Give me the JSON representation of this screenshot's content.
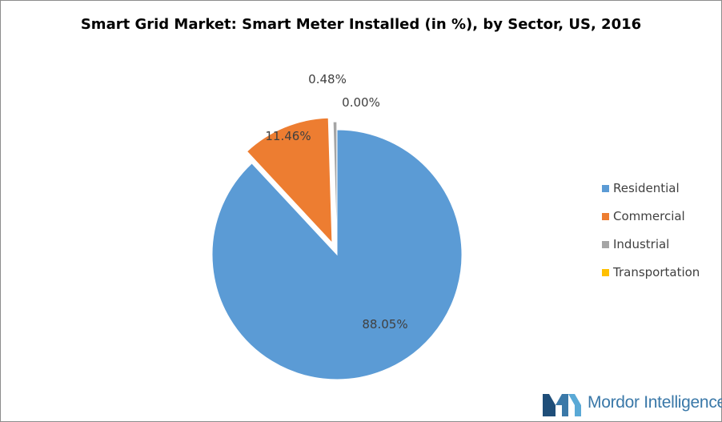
{
  "chart_data": {
    "type": "pie",
    "title": "Smart Grid Market: Smart Meter Installed (in %), by Sector, US, 2016",
    "slices": [
      {
        "name": "Residential",
        "value": 88.05,
        "label": "88.05%",
        "color": "#5b9bd5",
        "exploded": false
      },
      {
        "name": "Commercial",
        "value": 11.46,
        "label": "11.46%",
        "color": "#ed7d31",
        "exploded": true
      },
      {
        "name": "Industrial",
        "value": 0.48,
        "label": "0.48%",
        "color": "#a5a5a5",
        "exploded": true
      },
      {
        "name": "Transportation",
        "value": 0.0,
        "label": "0.00%",
        "color": "#ffc000",
        "exploded": true
      }
    ],
    "legend_position": "right"
  },
  "brand": {
    "name": "Mordor Intelligence",
    "colors": {
      "dark": "#1f4e79",
      "light": "#3a78a8"
    }
  }
}
